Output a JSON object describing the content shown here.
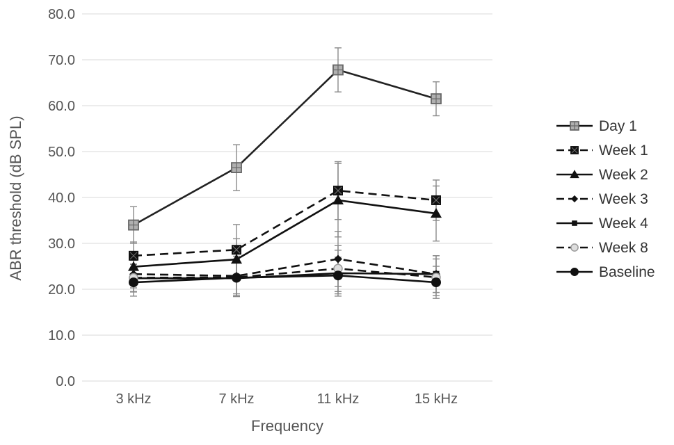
{
  "chart_data": {
    "type": "line",
    "title": "",
    "xlabel": "Frequency",
    "ylabel": "ABR threshold (dB SPL)",
    "categories": [
      "3 kHz",
      "7 kHz",
      "11 kHz",
      "15 kHz"
    ],
    "ylim": [
      0,
      80
    ],
    "yticks": [
      "0.0",
      "10.0",
      "20.0",
      "30.0",
      "40.0",
      "50.0",
      "60.0",
      "70.0",
      "80.0"
    ],
    "grid": true,
    "legend_position": "right",
    "series": [
      {
        "name": "Day 1",
        "values": [
          34.0,
          46.5,
          67.8,
          61.5
        ],
        "errors": [
          4.0,
          5.0,
          4.8,
          3.7
        ],
        "dash": "solid",
        "marker": "square-grid",
        "color": "#888888"
      },
      {
        "name": "Week 1",
        "values": [
          27.3,
          28.6,
          41.5,
          39.4
        ],
        "errors": [
          3.0,
          5.5,
          6.3,
          4.4
        ],
        "dash": "dashed",
        "marker": "square-x",
        "color": "#111111"
      },
      {
        "name": "Week 2",
        "values": [
          24.9,
          26.5,
          39.4,
          36.5
        ],
        "errors": [
          3.0,
          4.5,
          8.0,
          6.0
        ],
        "dash": "solid",
        "marker": "triangle",
        "color": "#111111"
      },
      {
        "name": "Week 3",
        "values": [
          23.3,
          22.9,
          26.6,
          23.3
        ],
        "errors": [
          3.0,
          4.3,
          6.0,
          4.0
        ],
        "dash": "dashed",
        "marker": "diamond",
        "color": "#111111"
      },
      {
        "name": "Week 4",
        "values": [
          22.4,
          22.4,
          23.5,
          23.3
        ],
        "errors": [
          3.0,
          4.0,
          5.0,
          4.0
        ],
        "dash": "solid",
        "marker": "small-square",
        "color": "#111111"
      },
      {
        "name": "Week 8",
        "values": [
          22.5,
          22.6,
          24.5,
          22.6
        ],
        "errors": [
          3.0,
          4.0,
          5.0,
          4.0
        ],
        "dash": "dashed",
        "marker": "circle-hollow",
        "color": "#aaaaaa"
      },
      {
        "name": "Baseline",
        "values": [
          21.5,
          22.5,
          23.0,
          21.5
        ],
        "errors": [
          3.0,
          3.5,
          4.0,
          3.5
        ],
        "dash": "solid",
        "marker": "circle",
        "color": "#111111"
      }
    ]
  }
}
